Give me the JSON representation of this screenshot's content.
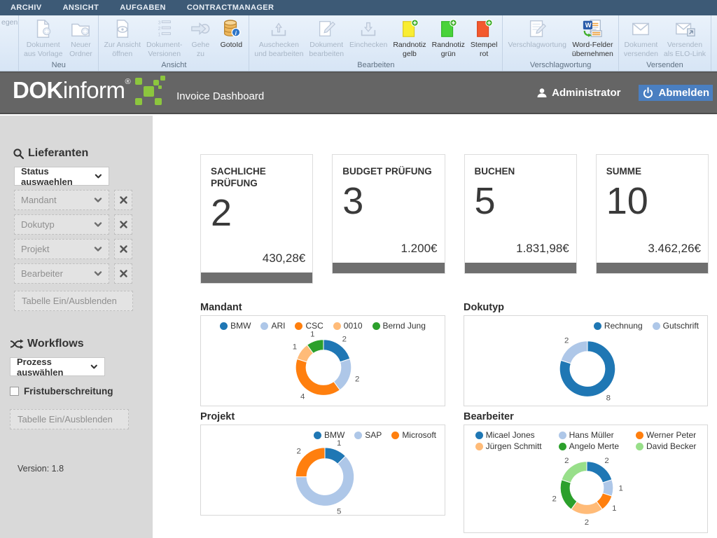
{
  "ribbon": {
    "tabs": [
      "ARCHIV",
      "ANSICHT",
      "AUFGABEN",
      "CONTRACTMANAGER"
    ],
    "clipped_text": "egen",
    "groups": [
      {
        "label": "Neu",
        "buttons": [
          {
            "label": "Dokument\naus Vorlage",
            "icon": "document-plus-icon",
            "enabled": false
          },
          {
            "label": "Neuer\nOrdner",
            "icon": "folder-plus-icon",
            "enabled": false
          }
        ]
      },
      {
        "label": "Ansicht",
        "buttons": [
          {
            "label": "Zur Ansicht\nöffnen",
            "icon": "document-view-icon",
            "enabled": false
          },
          {
            "label": "Dokument-\nVersionen",
            "icon": "document-versions-icon",
            "enabled": false
          },
          {
            "label": "Gehe\nzu",
            "icon": "goto-arrow-icon",
            "enabled": false
          },
          {
            "label": "GotoId",
            "icon": "database-info-icon",
            "enabled": true
          }
        ]
      },
      {
        "label": "Bearbeiten",
        "buttons": [
          {
            "label": "Auschecken\nund bearbeiten",
            "icon": "checkout-icon",
            "enabled": false
          },
          {
            "label": "Dokument\nbearbeiten",
            "icon": "edit-pencil-icon",
            "enabled": false
          },
          {
            "label": "Einchecken",
            "icon": "checkin-icon",
            "enabled": false
          },
          {
            "label": "Randnotiz\ngelb",
            "icon": "note-yellow-icon",
            "enabled": true
          },
          {
            "label": "Randnotiz\ngrün",
            "icon": "note-green-icon",
            "enabled": true
          },
          {
            "label": "Stempel\nrot",
            "icon": "stamp-red-icon",
            "enabled": true
          }
        ]
      },
      {
        "label": "Verschlagwortung",
        "buttons": [
          {
            "label": "Verschlagwortung",
            "icon": "keywording-icon",
            "enabled": false
          },
          {
            "label": "Word-Felder\nübernehmen",
            "icon": "word-fields-icon",
            "enabled": true
          }
        ]
      },
      {
        "label": "Versenden",
        "buttons": [
          {
            "label": "Dokument\nversenden",
            "icon": "send-mail-icon",
            "enabled": false
          },
          {
            "label": "Versenden\nals ELO-Link",
            "icon": "send-elo-link-icon",
            "enabled": false
          }
        ]
      }
    ]
  },
  "header": {
    "logo_bold": "DOK",
    "logo_light": "inform",
    "logo_reg": "®",
    "title": "Invoice Dashboard",
    "user_label": "Administrator",
    "logout_label": "Abmelden"
  },
  "sidebar": {
    "search_section": {
      "heading": "Lieferanten",
      "status_dropdown": "Status auswaehlen",
      "filters": [
        "Mandant",
        "Dokutyp",
        "Projekt",
        "Bearbeiter"
      ],
      "table_toggle": "Tabelle Ein/Ausblenden"
    },
    "workflow_section": {
      "heading": "Workflows",
      "process_dropdown": "Prozess auswählen",
      "checkbox_label": "Fristuberschreitung",
      "table_toggle": "Tabelle Ein/Ausblenden"
    },
    "version": "Version: 1.8"
  },
  "cards": [
    {
      "title": "SACHLICHE PRÜFUNG",
      "count": "2",
      "amount": "430,28€"
    },
    {
      "title": "BUDGET PRÜFUNG",
      "count": "3",
      "amount": "1.200€"
    },
    {
      "title": "BUCHEN",
      "count": "5",
      "amount": "1.831,98€"
    },
    {
      "title": "SUMME",
      "count": "10",
      "amount": "3.462,26€"
    }
  ],
  "chart_data": [
    {
      "type": "pie",
      "donut": true,
      "title": "Mandant",
      "legend_position": "top-center",
      "series": [
        {
          "name": "BMW",
          "value": 2,
          "color": "#1f77b4"
        },
        {
          "name": "ARI",
          "value": 2,
          "color": "#aec7e8"
        },
        {
          "name": "CSC",
          "value": 4,
          "color": "#ff7f0e"
        },
        {
          "name": "0010",
          "value": 1,
          "color": "#ffbb78"
        },
        {
          "name": "Bernd Jung",
          "value": 1,
          "color": "#2ca02c"
        }
      ]
    },
    {
      "type": "pie",
      "donut": true,
      "title": "Dokutyp",
      "legend_position": "top-right",
      "series": [
        {
          "name": "Rechnung",
          "value": 8,
          "color": "#1f77b4"
        },
        {
          "name": "Gutschrift",
          "value": 2,
          "color": "#aec7e8"
        }
      ]
    },
    {
      "type": "pie",
      "donut": true,
      "title": "Projekt",
      "legend_position": "top-right",
      "series": [
        {
          "name": "BMW",
          "value": 1,
          "color": "#1f77b4"
        },
        {
          "name": "SAP",
          "value": 5,
          "color": "#aec7e8"
        },
        {
          "name": "Microsoft",
          "value": 2,
          "color": "#ff7f0e"
        }
      ]
    },
    {
      "type": "pie",
      "donut": true,
      "title": "Bearbeiter",
      "legend_position": "top-grid",
      "series": [
        {
          "name": "Micael Jones",
          "value": 2,
          "color": "#1f77b4"
        },
        {
          "name": "Hans Müller",
          "value": 1,
          "color": "#aec7e8"
        },
        {
          "name": "Werner Peter",
          "value": 1,
          "color": "#ff7f0e"
        },
        {
          "name": "Jürgen Schmitt",
          "value": 2,
          "color": "#ffbb78"
        },
        {
          "name": "Angelo Merte",
          "value": 2,
          "color": "#2ca02c"
        },
        {
          "name": "David Becker",
          "value": 2,
          "color": "#98df8a"
        }
      ]
    }
  ],
  "colors": {
    "tabbar_blue": "#3d5a76",
    "header_gray": "#656565",
    "logo_green": "#8cc63e",
    "logout_highlight": "#4a7fc1",
    "card_footer_gray": "#6f6f6f"
  }
}
